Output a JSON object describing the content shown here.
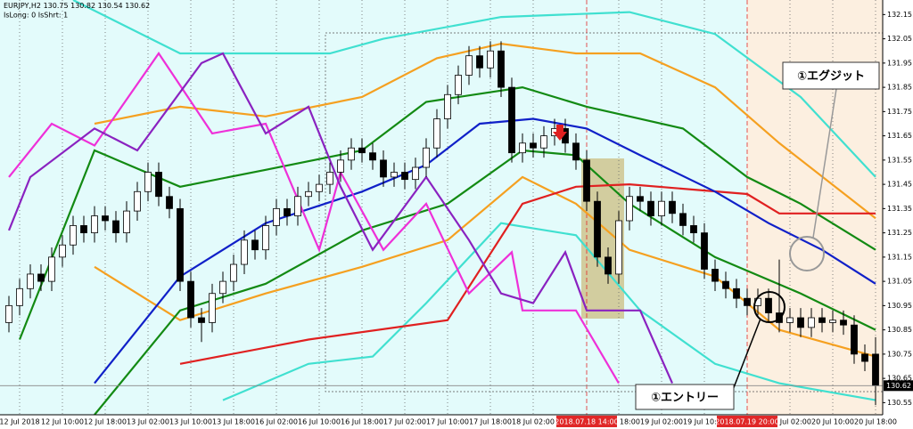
{
  "chart_data": {
    "type": "candlestick",
    "symbol": "EURJPY,H2",
    "status": "IsLong: 0 IsShrt: 1",
    "annotations": [
      "①エグジット",
      "①エントリー"
    ],
    "background": "#e3fbfb",
    "highlight_background": "#fcefe0",
    "highlight_color": "#e02828",
    "up_color": "#ffffff",
    "down_color": "#000000",
    "ylim": [
      130.5,
      132.21
    ],
    "yticks": [
      130.55,
      130.65,
      130.75,
      130.85,
      130.95,
      131.05,
      131.15,
      131.25,
      131.35,
      131.45,
      131.55,
      131.65,
      131.75,
      131.85,
      131.95,
      132.05,
      132.15
    ],
    "categories": [
      null,
      "12 Jul 2018",
      null,
      null,
      null,
      "12 Jul 10:00",
      null,
      null,
      null,
      "12 Jul 18:00",
      null,
      null,
      null,
      "13 Jul 02:00",
      null,
      null,
      null,
      "13 Jul 10:00",
      null,
      null,
      null,
      "13 Jul 18:00",
      null,
      null,
      null,
      "16 Jul 02:00",
      null,
      null,
      null,
      "16 Jul 10:00",
      null,
      null,
      null,
      "16 Jul 18:00",
      null,
      null,
      null,
      "17 Jul 02:00",
      null,
      null,
      null,
      "17 Jul 10:00",
      null,
      null,
      null,
      "17 Jul 18:00",
      null,
      null,
      null,
      "18 Jul 02:00",
      null,
      null,
      null,
      null,
      "2018.07.18 14:00",
      null,
      null,
      "18 Jul 18:00",
      null,
      null,
      null,
      "19 Jul 02:00",
      null,
      null,
      null,
      "19 Jul 10:00",
      null,
      null,
      null,
      "2018.07.19 20:00",
      null,
      null,
      null,
      "20 Jul 02:00",
      null,
      null,
      null,
      "20 Jul 10:00",
      null,
      null,
      null,
      "20 Jul 18:00"
    ],
    "open": [
      130.88,
      130.95,
      131.02,
      131.08,
      131.05,
      131.15,
      131.2,
      131.28,
      131.25,
      131.32,
      131.3,
      131.25,
      131.34,
      131.42,
      131.5,
      131.4,
      131.35,
      131.05,
      130.9,
      130.88,
      131.0,
      131.05,
      131.12,
      131.22,
      131.18,
      131.28,
      131.35,
      131.32,
      131.4,
      131.42,
      131.45,
      131.5,
      131.55,
      131.6,
      131.58,
      131.55,
      131.48,
      131.5,
      131.47,
      131.52,
      131.6,
      131.72,
      131.82,
      131.9,
      131.98,
      131.93,
      132.0,
      131.85,
      131.58,
      131.62,
      131.6,
      131.65,
      131.68,
      131.62,
      131.55,
      131.38,
      131.15,
      131.08,
      131.3,
      131.4,
      131.38,
      131.32,
      131.38,
      131.33,
      131.28,
      131.25,
      131.1,
      131.05,
      131.02,
      130.98,
      130.95,
      130.98,
      130.92,
      130.88,
      130.9,
      130.86,
      130.9,
      130.88,
      130.89,
      130.87,
      130.75,
      130.75
    ],
    "high": [
      130.99,
      131.06,
      131.12,
      131.12,
      131.19,
      131.24,
      131.32,
      131.32,
      131.36,
      131.36,
      131.34,
      131.38,
      131.46,
      131.54,
      131.54,
      131.44,
      131.39,
      131.09,
      130.94,
      131.04,
      131.09,
      131.16,
      131.26,
      131.26,
      131.32,
      131.39,
      131.39,
      131.44,
      131.46,
      131.49,
      131.54,
      131.59,
      131.64,
      131.64,
      131.62,
      131.59,
      131.54,
      131.54,
      131.56,
      131.64,
      131.76,
      131.86,
      131.94,
      132.02,
      132.02,
      132.04,
      132.04,
      131.89,
      131.66,
      131.66,
      131.69,
      131.72,
      131.72,
      131.66,
      131.59,
      131.42,
      131.19,
      131.34,
      131.44,
      131.44,
      131.42,
      131.42,
      131.42,
      131.37,
      131.32,
      131.29,
      131.14,
      131.09,
      131.06,
      131.02,
      131.02,
      131.02,
      131.14,
      130.94,
      130.94,
      130.94,
      130.94,
      130.93,
      130.93,
      130.91,
      130.79,
      130.82
    ],
    "low": [
      130.84,
      130.91,
      130.98,
      131.01,
      131.01,
      131.11,
      131.16,
      131.21,
      131.21,
      131.26,
      131.21,
      131.21,
      131.3,
      131.38,
      131.36,
      131.31,
      131.01,
      130.86,
      130.8,
      130.84,
      130.96,
      131.01,
      131.08,
      131.14,
      131.14,
      131.24,
      131.28,
      131.28,
      131.36,
      131.38,
      131.41,
      131.46,
      131.51,
      131.54,
      131.51,
      131.44,
      131.44,
      131.43,
      131.43,
      131.48,
      131.56,
      131.68,
      131.78,
      131.86,
      131.89,
      131.89,
      131.81,
      131.54,
      131.54,
      131.56,
      131.56,
      131.61,
      131.58,
      131.51,
      131.34,
      131.11,
      131.04,
      131.04,
      131.26,
      131.34,
      131.28,
      131.28,
      131.29,
      131.24,
      131.21,
      131.06,
      131.01,
      130.98,
      130.94,
      130.91,
      130.91,
      130.88,
      130.84,
      130.84,
      130.82,
      130.82,
      130.84,
      130.84,
      130.83,
      130.71,
      130.68,
      130.54
    ],
    "close": [
      130.95,
      131.02,
      131.08,
      131.05,
      131.15,
      131.2,
      131.28,
      131.25,
      131.32,
      131.3,
      131.25,
      131.34,
      131.42,
      131.5,
      131.4,
      131.35,
      131.05,
      130.9,
      130.88,
      131.0,
      131.05,
      131.12,
      131.22,
      131.18,
      131.28,
      131.35,
      131.32,
      131.4,
      131.42,
      131.45,
      131.5,
      131.55,
      131.6,
      131.58,
      131.55,
      131.48,
      131.5,
      131.47,
      131.52,
      131.6,
      131.72,
      131.82,
      131.9,
      131.98,
      131.93,
      132.0,
      131.85,
      131.58,
      131.62,
      131.6,
      131.65,
      131.68,
      131.62,
      131.55,
      131.38,
      131.15,
      131.08,
      131.3,
      131.4,
      131.38,
      131.32,
      131.38,
      131.33,
      131.28,
      131.25,
      131.1,
      131.05,
      131.02,
      130.98,
      130.95,
      130.98,
      130.92,
      130.88,
      130.9,
      130.86,
      130.9,
      130.88,
      130.89,
      130.87,
      130.75,
      130.72,
      130.62
    ],
    "lines": [
      {
        "color": "#40e0d0",
        "x": [
          6,
          16,
          24,
          30,
          35,
          46,
          58,
          66,
          74,
          81
        ],
        "values": [
          132.21,
          131.99,
          131.99,
          131.99,
          132.05,
          132.14,
          132.16,
          132.07,
          131.81,
          131.48
        ]
      },
      {
        "color": "#40e0d0",
        "x": [
          20,
          28,
          34,
          39,
          46,
          53,
          59,
          66,
          72,
          81
        ],
        "values": [
          130.56,
          130.71,
          130.74,
          130.96,
          131.29,
          131.24,
          130.93,
          130.71,
          130.63,
          130.56
        ]
      },
      {
        "color": "#f5a020",
        "x": [
          8,
          16,
          24,
          33,
          40,
          46,
          53,
          59,
          66,
          72,
          81
        ],
        "values": [
          131.7,
          131.77,
          131.73,
          131.81,
          131.97,
          132.03,
          131.99,
          131.99,
          131.85,
          131.62,
          131.31
        ]
      },
      {
        "color": "#f5a020",
        "x": [
          8,
          16,
          24,
          33,
          41,
          48,
          53,
          58,
          66,
          72,
          81
        ],
        "values": [
          131.11,
          130.89,
          131.0,
          131.11,
          131.22,
          131.48,
          131.37,
          131.18,
          131.07,
          130.85,
          130.74
        ]
      },
      {
        "color": "#138a13",
        "x": [
          1,
          8,
          16,
          24,
          33,
          39,
          48,
          54,
          63,
          69,
          74,
          81
        ],
        "values": [
          130.81,
          131.59,
          131.44,
          131.51,
          131.59,
          131.79,
          131.85,
          131.77,
          131.68,
          131.48,
          131.37,
          131.18
        ]
      },
      {
        "color": "#138a13",
        "x": [
          8,
          16,
          24,
          33,
          41,
          48,
          53,
          58,
          66,
          74,
          81
        ],
        "values": [
          130.5,
          130.93,
          131.04,
          131.26,
          131.37,
          131.59,
          131.57,
          131.37,
          131.15,
          131.0,
          130.85
        ]
      },
      {
        "color": "#e02020",
        "x": [
          16,
          28,
          41,
          48,
          53,
          58,
          69,
          72,
          81
        ],
        "values": [
          130.71,
          130.81,
          130.89,
          131.37,
          131.44,
          131.45,
          131.41,
          131.33,
          131.33
        ]
      },
      {
        "color": "#1020c8",
        "x": [
          8,
          16,
          24,
          33,
          39,
          44,
          49,
          54,
          59,
          66,
          71,
          76,
          81
        ],
        "values": [
          130.63,
          131.07,
          131.29,
          131.42,
          131.53,
          131.7,
          131.72,
          131.68,
          131.57,
          131.42,
          131.29,
          131.18,
          131.04
        ]
      },
      {
        "color": "#ee30d8",
        "x": [
          0,
          4,
          8,
          14,
          19,
          24,
          29,
          31,
          35,
          39,
          43,
          47,
          48,
          53,
          57
        ],
        "values": [
          131.48,
          131.7,
          131.61,
          131.99,
          131.66,
          131.7,
          131.18,
          131.5,
          131.18,
          131.37,
          131.0,
          131.17,
          130.93,
          130.93,
          130.63
        ]
      },
      {
        "color": "#8a22c0",
        "x": [
          0,
          2,
          8,
          12,
          18,
          20,
          24,
          28,
          31,
          34,
          39,
          43,
          46,
          49,
          52,
          54,
          59,
          62
        ],
        "values": [
          131.26,
          131.48,
          131.68,
          131.59,
          131.95,
          131.99,
          131.66,
          131.77,
          131.44,
          131.18,
          131.48,
          131.22,
          131.0,
          130.96,
          131.17,
          130.93,
          130.93,
          130.63
        ]
      }
    ]
  }
}
